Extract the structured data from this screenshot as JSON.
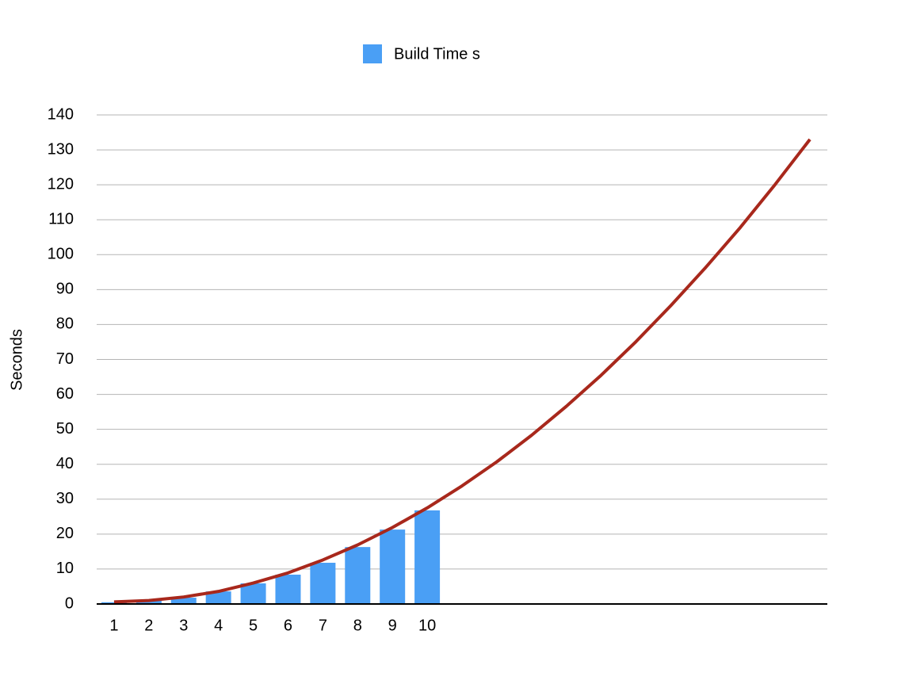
{
  "chart_data": {
    "type": "bar",
    "categories": [
      1,
      2,
      3,
      4,
      5,
      6,
      7,
      8,
      9,
      10,
      null,
      null,
      null,
      null,
      null,
      null,
      null,
      null,
      null,
      null,
      null
    ],
    "series": [
      {
        "name": "Build Time s",
        "type": "bar",
        "color": "#4a9ff5",
        "values": [
          0.5,
          1.0,
          1.8,
          3.6,
          5.9,
          8.4,
          11.8,
          16.3,
          21.3,
          26.8,
          null,
          null,
          null,
          null,
          null,
          null,
          null,
          null,
          null,
          null,
          null
        ]
      },
      {
        "type": "line",
        "color": "#a8281c",
        "values": [
          0.6,
          1.0,
          2.0,
          3.6,
          6.0,
          8.9,
          12.6,
          16.9,
          21.9,
          27.5,
          33.8,
          40.7,
          48.3,
          56.6,
          65.5,
          75.1,
          85.4,
          96.3,
          107.8,
          120.1,
          133.0
        ]
      }
    ],
    "y_label": "Seconds",
    "ylim": [
      0,
      140
    ],
    "yticks": [
      0,
      10,
      20,
      30,
      40,
      50,
      60,
      70,
      80,
      90,
      100,
      110,
      120,
      130,
      140
    ],
    "grid": true
  }
}
